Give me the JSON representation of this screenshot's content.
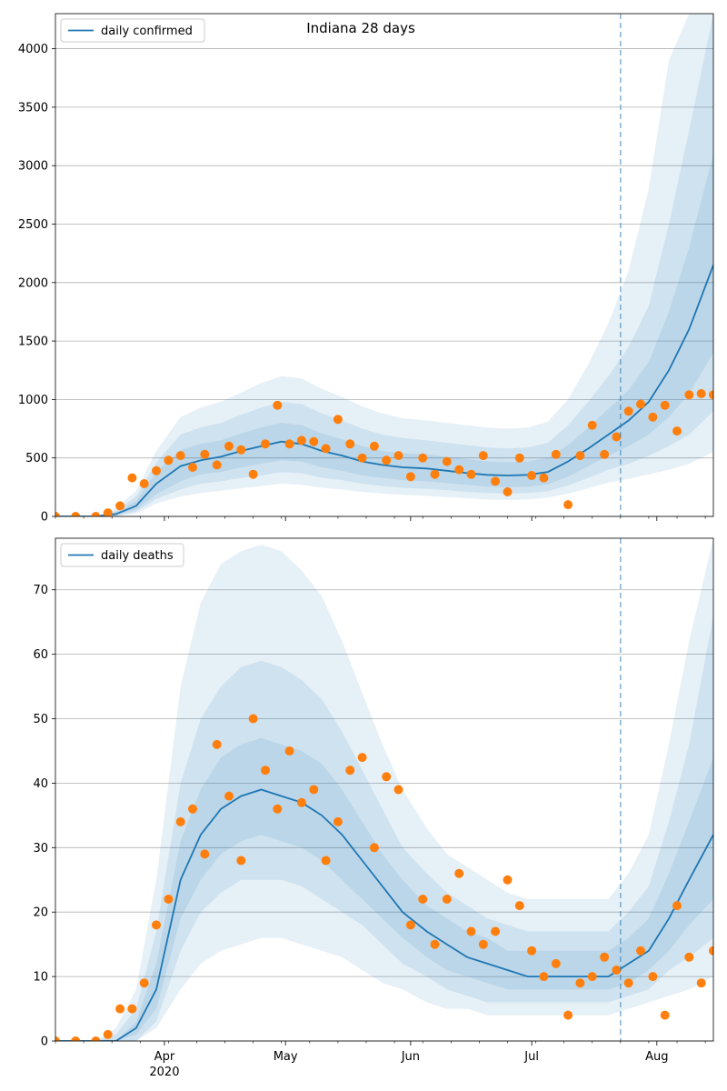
{
  "title": "Indiana 28 days",
  "colors": {
    "line": "#1f77b4",
    "points": "#ff7f0e",
    "band": "#1f77b4",
    "grid": "#b0b0b0",
    "cutoff": "#1f77b4"
  },
  "x_ticks": {
    "major": [
      {
        "date": "2020-04-01",
        "label": "Apr",
        "sublabel": "2020"
      },
      {
        "date": "2020-05-01",
        "label": "May",
        "sublabel": ""
      },
      {
        "date": "2020-06-01",
        "label": "Jun",
        "sublabel": ""
      },
      {
        "date": "2020-07-01",
        "label": "Jul",
        "sublabel": ""
      },
      {
        "date": "2020-08-01",
        "label": "Aug",
        "sublabel": ""
      }
    ]
  },
  "chart_data": [
    {
      "type": "line",
      "legend": "daily confirmed",
      "legend_placement": "top-left",
      "grid": "horizontal",
      "x_range": [
        "2020-03-05",
        "2020-08-15"
      ],
      "ylim": [
        0,
        4300
      ],
      "yticks": [
        0,
        500,
        1000,
        1500,
        2000,
        2500,
        3000,
        3500,
        4000
      ],
      "forecast_start": "2020-07-23",
      "model": {
        "x": [
          "2020-03-05",
          "2020-03-10",
          "2020-03-15",
          "2020-03-20",
          "2020-03-25",
          "2020-03-30",
          "2020-04-05",
          "2020-04-10",
          "2020-04-15",
          "2020-04-20",
          "2020-04-25",
          "2020-04-30",
          "2020-05-05",
          "2020-05-10",
          "2020-05-15",
          "2020-05-20",
          "2020-05-25",
          "2020-05-30",
          "2020-06-05",
          "2020-06-10",
          "2020-06-15",
          "2020-06-20",
          "2020-06-25",
          "2020-06-30",
          "2020-07-05",
          "2020-07-10",
          "2020-07-15",
          "2020-07-20",
          "2020-07-25",
          "2020-07-30",
          "2020-08-04",
          "2020-08-09",
          "2020-08-15"
        ],
        "median": [
          0,
          0,
          0,
          20,
          90,
          280,
          430,
          480,
          510,
          560,
          600,
          640,
          620,
          560,
          520,
          470,
          440,
          420,
          410,
          390,
          370,
          355,
          350,
          355,
          380,
          470,
          580,
          700,
          820,
          980,
          1250,
          1600,
          2150
        ],
        "bands": [
          {
            "lo": [
              0,
              0,
              0,
              10,
              60,
              190,
              300,
              360,
              380,
              420,
              450,
              480,
              470,
              420,
              390,
              350,
              330,
              310,
              300,
              285,
              270,
              255,
              250,
              255,
              275,
              340,
              430,
              520,
              600,
              700,
              850,
              1050,
              1400
            ],
            "hi": [
              0,
              0,
              0,
              35,
              130,
              380,
              570,
              620,
              650,
              710,
              760,
              800,
              780,
              710,
              660,
              600,
              560,
              540,
              530,
              510,
              490,
              470,
              465,
              470,
              500,
              610,
              760,
              920,
              1080,
              1320,
              1750,
              2300,
              3100
            ]
          },
          {
            "lo": [
              0,
              0,
              0,
              5,
              40,
              150,
              230,
              280,
              300,
              330,
              350,
              380,
              370,
              330,
              310,
              280,
              260,
              245,
              235,
              225,
              210,
              200,
              195,
              200,
              215,
              265,
              330,
              400,
              450,
              520,
              600,
              700,
              900
            ],
            "hi": [
              0,
              0,
              0,
              50,
              170,
              460,
              700,
              760,
              800,
              870,
              930,
              980,
              960,
              880,
              820,
              750,
              700,
              670,
              650,
              630,
              610,
              590,
              580,
              590,
              630,
              780,
              980,
              1200,
              1450,
              1800,
              2500,
              3300,
              4300
            ]
          },
          {
            "lo": [
              0,
              0,
              0,
              2,
              25,
              110,
              170,
              200,
              220,
              240,
              260,
              280,
              270,
              245,
              230,
              210,
              195,
              185,
              175,
              165,
              155,
              145,
              140,
              145,
              160,
              195,
              240,
              290,
              320,
              360,
              400,
              450,
              550
            ],
            "hi": [
              0,
              0,
              0,
              70,
              220,
              560,
              850,
              930,
              980,
              1060,
              1140,
              1200,
              1180,
              1090,
              1020,
              940,
              880,
              840,
              820,
              800,
              780,
              760,
              750,
              760,
              810,
              1000,
              1300,
              1650,
              2100,
              2800,
              3900,
              4300,
              4300
            ]
          }
        ]
      },
      "observed": {
        "x": [
          "2020-03-05",
          "2020-03-10",
          "2020-03-15",
          "2020-03-18",
          "2020-03-21",
          "2020-03-24",
          "2020-03-27",
          "2020-03-30",
          "2020-04-02",
          "2020-04-05",
          "2020-04-08",
          "2020-04-11",
          "2020-04-14",
          "2020-04-17",
          "2020-04-20",
          "2020-04-23",
          "2020-04-26",
          "2020-04-29",
          "2020-05-02",
          "2020-05-05",
          "2020-05-08",
          "2020-05-11",
          "2020-05-14",
          "2020-05-17",
          "2020-05-20",
          "2020-05-23",
          "2020-05-26",
          "2020-05-29",
          "2020-06-01",
          "2020-06-04",
          "2020-06-07",
          "2020-06-10",
          "2020-06-13",
          "2020-06-16",
          "2020-06-19",
          "2020-06-22",
          "2020-06-25",
          "2020-06-28",
          "2020-07-01",
          "2020-07-04",
          "2020-07-07",
          "2020-07-10",
          "2020-07-13",
          "2020-07-16",
          "2020-07-19",
          "2020-07-22",
          "2020-07-25",
          "2020-07-28",
          "2020-07-31",
          "2020-08-03",
          "2020-08-06",
          "2020-08-09",
          "2020-08-12",
          "2020-08-15"
        ],
        "y": [
          0,
          0,
          0,
          30,
          90,
          330,
          280,
          390,
          480,
          520,
          420,
          530,
          440,
          600,
          570,
          360,
          620,
          950,
          620,
          650,
          640,
          580,
          830,
          620,
          500,
          600,
          480,
          520,
          340,
          500,
          360,
          470,
          400,
          360,
          520,
          300,
          210,
          500,
          350,
          330,
          530,
          100,
          520,
          780,
          530,
          680,
          900,
          960,
          850,
          950,
          730,
          1040,
          1050,
          1040
        ]
      }
    },
    {
      "type": "line",
      "legend": "daily deaths",
      "legend_placement": "top-left",
      "grid": "horizontal",
      "x_range": [
        "2020-03-05",
        "2020-08-15"
      ],
      "ylim": [
        0,
        78
      ],
      "yticks": [
        0,
        10,
        20,
        30,
        40,
        50,
        60,
        70
      ],
      "forecast_start": "2020-07-23",
      "model": {
        "x": [
          "2020-03-05",
          "2020-03-10",
          "2020-03-15",
          "2020-03-20",
          "2020-03-25",
          "2020-03-30",
          "2020-04-05",
          "2020-04-10",
          "2020-04-15",
          "2020-04-20",
          "2020-04-25",
          "2020-04-30",
          "2020-05-05",
          "2020-05-10",
          "2020-05-15",
          "2020-05-20",
          "2020-05-25",
          "2020-05-30",
          "2020-06-05",
          "2020-06-10",
          "2020-06-15",
          "2020-06-20",
          "2020-06-25",
          "2020-06-30",
          "2020-07-05",
          "2020-07-10",
          "2020-07-15",
          "2020-07-20",
          "2020-07-25",
          "2020-07-30",
          "2020-08-04",
          "2020-08-09",
          "2020-08-15"
        ],
        "median": [
          0,
          0,
          0,
          0,
          2,
          8,
          25,
          32,
          36,
          38,
          39,
          38,
          37,
          35,
          32,
          28,
          24,
          20,
          17,
          15,
          13,
          12,
          11,
          10,
          10,
          10,
          10,
          10,
          12,
          14,
          19,
          25,
          32
        ],
        "bands": [
          {
            "lo": [
              0,
              0,
              0,
              0,
              1,
              5,
              19,
              25,
              29,
              31,
              32,
              31,
              30,
              28,
              25,
              22,
              19,
              16,
              13,
              11,
              10,
              9,
              8,
              8,
              8,
              8,
              8,
              8,
              9,
              11,
              14,
              18,
              22
            ],
            "hi": [
              0,
              0,
              0,
              0,
              3,
              12,
              31,
              39,
              44,
              46,
              47,
              46,
              45,
              43,
              39,
              34,
              29,
              25,
              21,
              19,
              17,
              16,
              14,
              14,
              14,
              14,
              14,
              14,
              16,
              19,
              26,
              34,
              44
            ]
          },
          {
            "lo": [
              0,
              0,
              0,
              0,
              0,
              3,
              14,
              20,
              23,
              25,
              25,
              25,
              24,
              22,
              20,
              18,
              15,
              12,
              10,
              8,
              7,
              6,
              6,
              6,
              6,
              6,
              6,
              6,
              7,
              8,
              11,
              13,
              16
            ],
            "hi": [
              0,
              0,
              0,
              1,
              5,
              17,
              40,
              50,
              55,
              58,
              59,
              58,
              56,
              53,
              48,
              42,
              36,
              30,
              26,
              23,
              21,
              19,
              18,
              17,
              17,
              17,
              17,
              17,
              20,
              24,
              34,
              46,
              66
            ]
          },
          {
            "lo": [
              0,
              0,
              0,
              0,
              0,
              2,
              8,
              12,
              14,
              15,
              16,
              16,
              15,
              14,
              13,
              11,
              9,
              8,
              6,
              5,
              5,
              4,
              4,
              4,
              4,
              4,
              4,
              4,
              5,
              6,
              7,
              8,
              10
            ],
            "hi": [
              0,
              0,
              0,
              2,
              8,
              25,
              55,
              68,
              74,
              76,
              77,
              76,
              73,
              69,
              62,
              54,
              46,
              39,
              33,
              29,
              27,
              25,
              23,
              22,
              22,
              22,
              22,
              22,
              26,
              32,
              46,
              62,
              78
            ]
          }
        ]
      },
      "observed": {
        "x": [
          "2020-03-05",
          "2020-03-10",
          "2020-03-15",
          "2020-03-18",
          "2020-03-21",
          "2020-03-24",
          "2020-03-27",
          "2020-03-30",
          "2020-04-02",
          "2020-04-05",
          "2020-04-08",
          "2020-04-11",
          "2020-04-14",
          "2020-04-17",
          "2020-04-20",
          "2020-04-23",
          "2020-04-26",
          "2020-04-29",
          "2020-05-02",
          "2020-05-05",
          "2020-05-08",
          "2020-05-11",
          "2020-05-14",
          "2020-05-17",
          "2020-05-20",
          "2020-05-23",
          "2020-05-26",
          "2020-05-29",
          "2020-06-01",
          "2020-06-04",
          "2020-06-07",
          "2020-06-10",
          "2020-06-13",
          "2020-06-16",
          "2020-06-19",
          "2020-06-22",
          "2020-06-25",
          "2020-06-28",
          "2020-07-01",
          "2020-07-04",
          "2020-07-07",
          "2020-07-10",
          "2020-07-13",
          "2020-07-16",
          "2020-07-19",
          "2020-07-22",
          "2020-07-25",
          "2020-07-28",
          "2020-07-31",
          "2020-08-03",
          "2020-08-06",
          "2020-08-09",
          "2020-08-12",
          "2020-08-15"
        ],
        "y": [
          0,
          0,
          0,
          1,
          5,
          5,
          9,
          18,
          22,
          34,
          36,
          29,
          46,
          38,
          28,
          50,
          42,
          36,
          45,
          37,
          39,
          28,
          34,
          42,
          44,
          30,
          41,
          39,
          18,
          22,
          15,
          22,
          26,
          17,
          15,
          17,
          25,
          21,
          14,
          10,
          12,
          4,
          9,
          10,
          13,
          11,
          9,
          14,
          10,
          4,
          21,
          13,
          9,
          14
        ]
      }
    }
  ]
}
